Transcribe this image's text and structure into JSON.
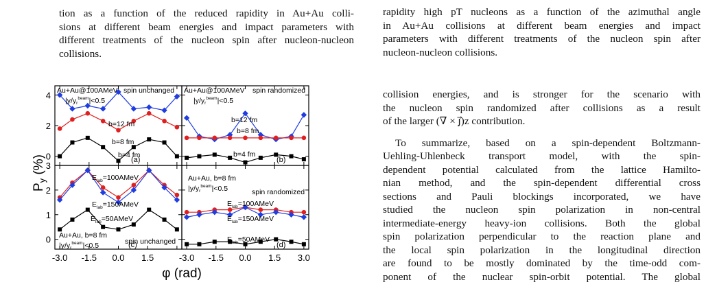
{
  "left_caption": {
    "lines": [
      "tion as a function of the reduced rapidity in Au+Au colli-",
      "sions at different beam energies and impact parameters with",
      "different treatments of the nucleon spin after nucleon-nucleon",
      "collisions."
    ]
  },
  "right_caption": {
    "lines": [
      "rapidity high pT nucleons as a function of the azimuthal angle",
      "in Au+Au collisions at different beam energies and impact",
      "parameters with different treatments of the nucleon spin after",
      "nucleon-nucleon collisions."
    ]
  },
  "body": {
    "para1_lines": [
      "collision energies, and is stronger for the scenario with",
      "the nucleon spin randomized after collisions as a result",
      "of the larger (∇ × j⃗)z contribution."
    ],
    "para2_lines": [
      "To summarize, based on a spin-dependent Boltzmann-",
      "Uehling-Uhlenbeck transport model, with the spin-",
      "dependent potential calculated from the lattice Hamilto-",
      "nian method, and the spin-dependent differential cross",
      "sections and Pauli blockings incorporated, we have",
      "studied the nucleon spin polarization in non-central",
      "intermediate-energy heavy-ion collisions. Both the global",
      "spin polarization perpendicular to the reaction plane and",
      "the local spin polarization in the longitudinal direction",
      "are found to be mostly dominated by the time-odd com-",
      "ponent of the nuclear spin-orbit potential. The global"
    ]
  },
  "figure": {
    "ylabel": "P_y (%)",
    "xlabel": "φ (rad)",
    "x_tick_labels": [
      "-3.0",
      "-1.5",
      "0.0",
      "1.5",
      "3.0"
    ],
    "panels": [
      {
        "id": "a",
        "header": "Au+Au@100AMeV",
        "cut": "|y/y_r^beam|<0.5",
        "scenario": "spin unchanged",
        "letter": "(a)",
        "series_labels": [
          "b=12 fm",
          "b=8 fm",
          "b=4 fm"
        ]
      },
      {
        "id": "b",
        "header": "Au+Au@100AMeV",
        "cut": "|y/y_r^beam|<0.5",
        "scenario": "spin randomized",
        "letter": "(b)",
        "series_labels": [
          "b=12 fm",
          "b=8 fm",
          "b=4 fm"
        ]
      },
      {
        "id": "c",
        "header": "Au+Au, b=8 fm",
        "cut": "|y/y_r^beam|<0.5",
        "scenario": "spin unchanged",
        "letter": "(c)",
        "series_labels": [
          "E_lab=100AMeV",
          "E_lab=150AMeV",
          "E_lab=50AMeV"
        ]
      },
      {
        "id": "d",
        "header": "Au+Au, b=8 fm",
        "cut": "|y/y_r^beam|<0.5",
        "scenario": "spin randomized",
        "letter": "(d)",
        "series_labels": [
          "E_lab=100AMeV",
          "E_lab=150AMeV",
          "E_lab=50AMeV"
        ]
      }
    ]
  },
  "chart_data": [
    {
      "type": "line",
      "panel": "a",
      "x": [
        -3.0,
        -2.356,
        -1.571,
        -0.785,
        0.0,
        0.785,
        1.571,
        2.356,
        3.0
      ],
      "ylim": [
        -0.6,
        4.6
      ],
      "yticks": [
        0,
        2,
        4
      ],
      "series": [
        {
          "name": "b=12 fm",
          "color": "#1f3de0",
          "values": [
            4.0,
            3.1,
            3.3,
            3.1,
            4.2,
            3.1,
            3.2,
            3.0,
            3.9
          ]
        },
        {
          "name": "b=8 fm",
          "color": "#e02020",
          "values": [
            1.8,
            2.4,
            2.8,
            2.3,
            1.7,
            2.3,
            2.8,
            2.3,
            1.9
          ]
        },
        {
          "name": "b=4 fm",
          "color": "#000000",
          "values": [
            0.0,
            0.9,
            1.2,
            0.6,
            -0.3,
            0.6,
            1.1,
            0.9,
            0.0
          ]
        }
      ]
    },
    {
      "type": "line",
      "panel": "b",
      "x": [
        -3.0,
        -2.356,
        -1.571,
        -0.785,
        0.0,
        0.785,
        1.571,
        2.356,
        3.0
      ],
      "ylim": [
        -0.6,
        4.6
      ],
      "yticks": [
        0,
        2,
        4
      ],
      "series": [
        {
          "name": "b=12 fm",
          "color": "#1f3de0",
          "values": [
            2.5,
            1.3,
            1.1,
            1.4,
            2.8,
            1.4,
            1.1,
            1.3,
            2.7
          ]
        },
        {
          "name": "b=8 fm",
          "color": "#e02020",
          "values": [
            1.2,
            1.2,
            1.2,
            1.2,
            1.2,
            1.2,
            1.2,
            1.2,
            1.2
          ]
        },
        {
          "name": "b=4 fm",
          "color": "#000000",
          "values": [
            -0.1,
            0.0,
            0.1,
            -0.1,
            -0.4,
            -0.1,
            0.1,
            0.0,
            -0.2
          ]
        }
      ]
    },
    {
      "type": "line",
      "panel": "c",
      "x": [
        -3.0,
        -2.356,
        -1.571,
        -0.785,
        0.0,
        0.785,
        1.571,
        2.356,
        3.0
      ],
      "ylim": [
        -0.4,
        3.0
      ],
      "yticks": [
        0,
        1,
        2,
        3
      ],
      "series": [
        {
          "name": "E_lab=100AMeV",
          "color": "#e02020",
          "values": [
            1.7,
            2.3,
            2.8,
            2.1,
            1.7,
            2.2,
            2.8,
            2.2,
            1.8
          ]
        },
        {
          "name": "E_lab=150AMeV",
          "color": "#1f3de0",
          "values": [
            1.6,
            2.2,
            2.8,
            1.9,
            1.5,
            2.0,
            2.8,
            2.1,
            1.6
          ]
        },
        {
          "name": "E_lab=50AMeV",
          "color": "#000000",
          "values": [
            0.4,
            0.8,
            1.2,
            0.5,
            0.4,
            0.6,
            1.2,
            0.8,
            0.4
          ]
        }
      ]
    },
    {
      "type": "line",
      "panel": "d",
      "x": [
        -3.0,
        -2.356,
        -1.571,
        -0.785,
        0.0,
        0.785,
        1.571,
        2.356,
        3.0
      ],
      "ylim": [
        -0.4,
        3.0
      ],
      "yticks": [
        0,
        1,
        2,
        3
      ],
      "series": [
        {
          "name": "E_lab=100AMeV",
          "color": "#e02020",
          "values": [
            1.1,
            1.1,
            1.2,
            1.2,
            1.3,
            1.2,
            1.2,
            1.1,
            1.1
          ]
        },
        {
          "name": "E_lab=150AMeV",
          "color": "#1f3de0",
          "values": [
            0.9,
            1.0,
            1.1,
            1.0,
            1.3,
            1.0,
            1.1,
            1.0,
            0.9
          ]
        },
        {
          "name": "E_lab=50AMeV",
          "color": "#000000",
          "values": [
            -0.2,
            -0.2,
            -0.1,
            -0.1,
            -0.2,
            -0.1,
            0.0,
            -0.1,
            -0.2
          ]
        }
      ]
    }
  ]
}
